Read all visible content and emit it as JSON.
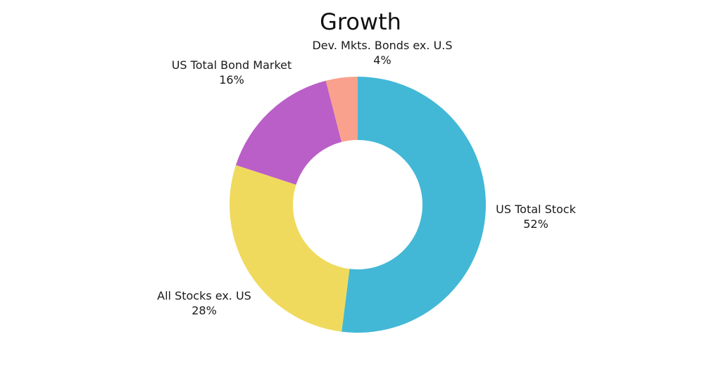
{
  "chart_data": {
    "type": "pie",
    "subtype": "donut",
    "title": "Growth",
    "start_angle_deg": 0,
    "direction": "clockwise",
    "legend": "none",
    "slices": [
      {
        "label": "US Total Stock",
        "value": 52,
        "display": "52%",
        "color": "#42B8D6"
      },
      {
        "label": "All Stocks ex. US",
        "value": 28,
        "display": "28%",
        "color": "#F0DA5D"
      },
      {
        "label": "US Total Bond Market",
        "value": 16,
        "display": "16%",
        "color": "#BA5FC7"
      },
      {
        "label": "Dev. Mkts. Bonds ex. U.S",
        "value": 4,
        "display": "4%",
        "color": "#F9A18C"
      }
    ]
  }
}
